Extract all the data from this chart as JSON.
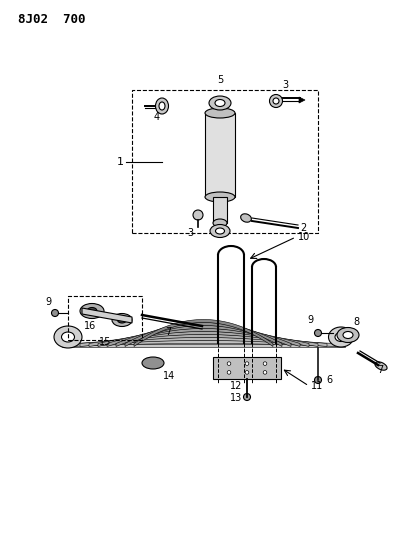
{
  "title": "8J02  700",
  "bg_color": "#ffffff",
  "line_color": "#000000",
  "title_fontsize": 9,
  "label_fontsize": 7,
  "fig_width": 3.97,
  "fig_height": 5.33,
  "dpi": 100
}
